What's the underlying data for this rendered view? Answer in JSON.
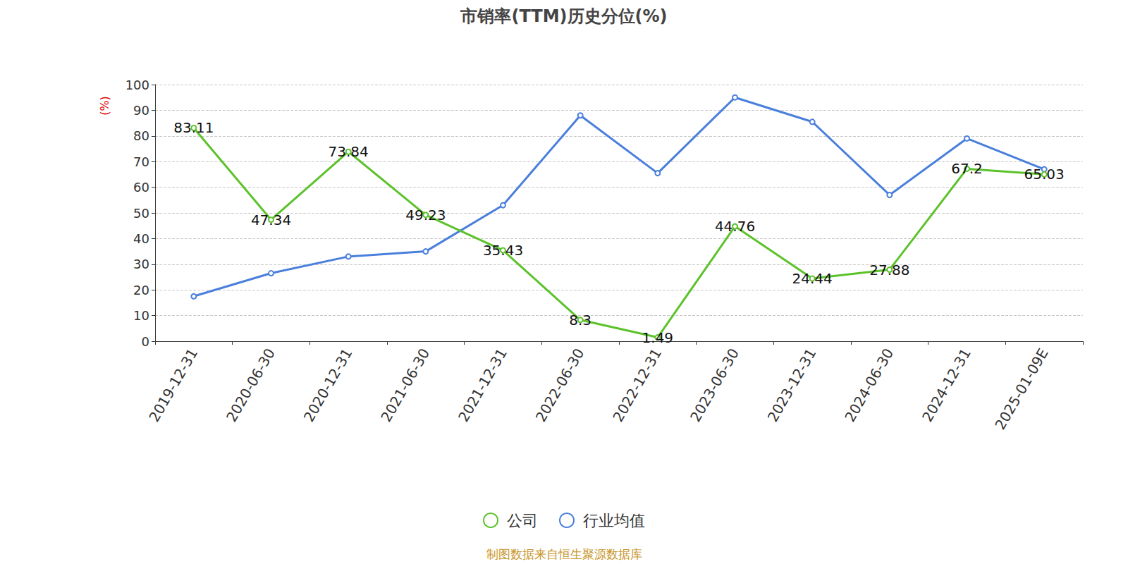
{
  "chart_data": {
    "type": "line",
    "title": "市销率(TTM)历史分位(%)",
    "y_label": "(%)",
    "note": "制图数据来自恒生聚源数据库",
    "categories": [
      "2019-12-31",
      "2020-06-30",
      "2020-12-31",
      "2021-06-30",
      "2021-12-31",
      "2022-06-30",
      "2022-12-31",
      "2023-06-30",
      "2023-12-31",
      "2024-06-30",
      "2024-12-31",
      "2025-01-09E"
    ],
    "series": [
      {
        "name": "公司",
        "color": "#5cc22a",
        "marker": "circle",
        "data_labels": true,
        "values": [
          83.11,
          47.34,
          73.84,
          49.23,
          35.43,
          8.3,
          1.49,
          44.76,
          24.44,
          27.88,
          67.2,
          65.03
        ]
      },
      {
        "name": "行业均值",
        "color": "#4a7fdc",
        "marker": "circle",
        "data_labels": false,
        "values": [
          17.5,
          26.5,
          33,
          35,
          53,
          88,
          65.5,
          95,
          85.5,
          57,
          79,
          67
        ]
      }
    ],
    "ylim": [
      0,
      100
    ],
    "yticks": [
      0,
      10,
      20,
      30,
      40,
      50,
      60,
      70,
      80,
      90,
      100
    ],
    "grid": true,
    "legend": "bottom"
  }
}
